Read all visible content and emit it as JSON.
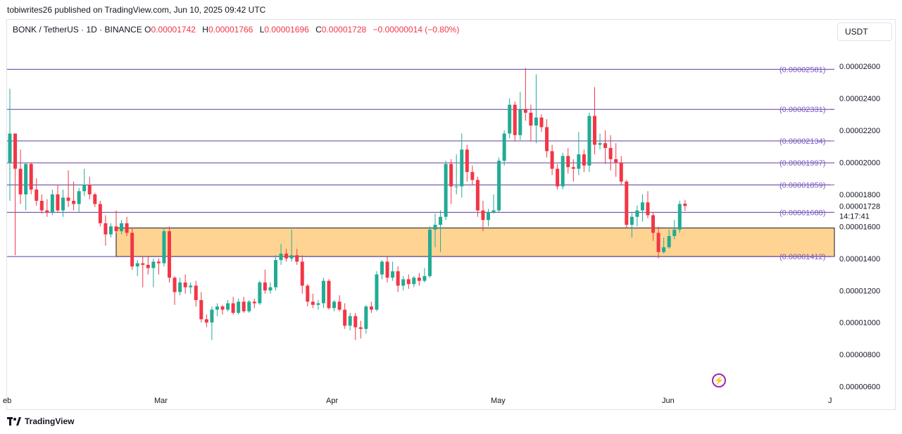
{
  "header": {
    "publish_text": "tobiwrites26 published on TradingView.com, Jun 10, 2025 09:42 UTC"
  },
  "legend": {
    "symbol": "BONK / TetherUS · 1D · BINANCE",
    "open_label": "O",
    "open": "0.00001742",
    "high_label": "H",
    "high": "0.00001766",
    "low_label": "L",
    "low": "0.00001696",
    "close_label": "C",
    "close": "0.00001728",
    "change": "−0.00000014 (−0.80%)"
  },
  "currency_selector": "USDT",
  "footer": {
    "brand": "TradingView"
  },
  "colors": {
    "up": "#22ab94",
    "down": "#f23645",
    "level_line": "#5b3fa0",
    "level_label": "#7e57c2",
    "zone_fill": "#ffcc80",
    "price_badge_text": "#131722"
  },
  "chart_data": {
    "type": "candlestick",
    "ylim": [
      5.5e-06,
      2.75e-05
    ],
    "y_ticks": [
      "0.00000600",
      "0.00000800",
      "0.00001000",
      "0.00001200",
      "0.00001400",
      "0.00001600",
      "0.00001800",
      "0.00002000",
      "0.00002200",
      "0.00002400",
      "0.00002600"
    ],
    "x_ticks": [
      "eb",
      "Mar",
      "Apr",
      "May",
      "Jun",
      "J"
    ],
    "current_price": "0.00001728",
    "countdown": "14:17:41",
    "horizontal_levels": [
      {
        "value": 2.581e-05,
        "label": "(0.00002581)"
      },
      {
        "value": 2.331e-05,
        "label": "(0.00002331)"
      },
      {
        "value": 2.134e-05,
        "label": "(0.00002134)"
      },
      {
        "value": 1.997e-05,
        "label": "(0.00001997)"
      },
      {
        "value": 1.859e-05,
        "label": "(0.00001859)"
      },
      {
        "value": 1.688e-05,
        "label": "(0.00001688)"
      },
      {
        "value": 1.412e-05,
        "label": "(0.00001412)"
      }
    ],
    "support_zone": {
      "top": 1.59e-05,
      "bottom": 1.412e-05,
      "start_date": "2025-03-01",
      "end": "right-edge"
    },
    "candles": [
      [
        "2025-02-09",
        2e-05,
        2.46e-05,
        1.76e-05,
        2.18e-05
      ],
      [
        "2025-02-10",
        2.18e-05,
        2.18e-05,
        1.42e-05,
        1.96e-05
      ],
      [
        "2025-02-11",
        1.96e-05,
        2.08e-05,
        1.74e-05,
        1.8e-05
      ],
      [
        "2025-02-12",
        1.8e-05,
        2e-05,
        1.7e-05,
        1.99e-05
      ],
      [
        "2025-02-13",
        1.99e-05,
        2e-05,
        1.8e-05,
        1.83e-05
      ],
      [
        "2025-02-14",
        1.83e-05,
        1.9e-05,
        1.73e-05,
        1.76e-05
      ],
      [
        "2025-02-15",
        1.76e-05,
        1.8e-05,
        1.68e-05,
        1.7e-05
      ],
      [
        "2025-02-16",
        1.7e-05,
        1.77e-05,
        1.66e-05,
        1.69e-05
      ],
      [
        "2025-02-17",
        1.69e-05,
        1.83e-05,
        1.67e-05,
        1.8e-05
      ],
      [
        "2025-02-18",
        1.8e-05,
        1.86e-05,
        1.69e-05,
        1.7e-05
      ],
      [
        "2025-02-19",
        1.7e-05,
        1.83e-05,
        1.66e-05,
        1.78e-05
      ],
      [
        "2025-02-20",
        1.78e-05,
        1.95e-05,
        1.72e-05,
        1.76e-05
      ],
      [
        "2025-02-21",
        1.76e-05,
        1.88e-05,
        1.7e-05,
        1.74e-05
      ],
      [
        "2025-02-22",
        1.74e-05,
        1.84e-05,
        1.69e-05,
        1.82e-05
      ],
      [
        "2025-02-23",
        1.82e-05,
        1.96e-05,
        1.79e-05,
        1.86e-05
      ],
      [
        "2025-02-24",
        1.86e-05,
        1.91e-05,
        1.77e-05,
        1.8e-05
      ],
      [
        "2025-02-25",
        1.8e-05,
        1.81e-05,
        1.72e-05,
        1.74e-05
      ],
      [
        "2025-02-26",
        1.74e-05,
        1.76e-05,
        1.6e-05,
        1.62e-05
      ],
      [
        "2025-02-27",
        1.62e-05,
        1.67e-05,
        1.48e-05,
        1.55e-05
      ],
      [
        "2025-02-28",
        1.55e-05,
        1.62e-05,
        1.53e-05,
        1.6e-05
      ],
      [
        "2025-03-01",
        1.6e-05,
        1.7e-05,
        1.56e-05,
        1.57e-05
      ],
      [
        "2025-03-02",
        1.57e-05,
        1.64e-05,
        1.55e-05,
        1.62e-05
      ],
      [
        "2025-03-03",
        1.62e-05,
        1.66e-05,
        1.54e-05,
        1.56e-05
      ],
      [
        "2025-03-04",
        1.56e-05,
        1.59e-05,
        1.33e-05,
        1.35e-05
      ],
      [
        "2025-03-05",
        1.35e-05,
        1.39e-05,
        1.29e-05,
        1.37e-05
      ],
      [
        "2025-03-06",
        1.37e-05,
        1.41e-05,
        1.22e-05,
        1.36e-05
      ],
      [
        "2025-03-07",
        1.36e-05,
        1.41e-05,
        1.3e-05,
        1.34e-05
      ],
      [
        "2025-03-08",
        1.34e-05,
        1.4e-05,
        1.22e-05,
        1.38e-05
      ],
      [
        "2025-03-09",
        1.38e-05,
        1.4e-05,
        1.3e-05,
        1.37e-05
      ],
      [
        "2025-03-10",
        1.37e-05,
        1.59e-05,
        1.35e-05,
        1.57e-05
      ],
      [
        "2025-03-11",
        1.57e-05,
        1.6e-05,
        1.25e-05,
        1.28e-05
      ],
      [
        "2025-03-12",
        1.28e-05,
        1.29e-05,
        1.11e-05,
        1.19e-05
      ],
      [
        "2025-03-13",
        1.19e-05,
        1.28e-05,
        1.17e-05,
        1.25e-05
      ],
      [
        "2025-03-14",
        1.25e-05,
        1.3e-05,
        1.18e-05,
        1.22e-05
      ],
      [
        "2025-03-15",
        1.22e-05,
        1.25e-05,
        1.18e-05,
        1.23e-05
      ],
      [
        "2025-03-16",
        1.23e-05,
        1.26e-05,
        1.1e-05,
        1.14e-05
      ],
      [
        "2025-03-17",
        1.14e-05,
        1.19e-05,
        1e-05,
        1.02e-05
      ],
      [
        "2025-03-18",
        1.02e-05,
        1.05e-05,
        9.7e-06,
        1e-05
      ],
      [
        "2025-03-19",
        1e-05,
        1.1e-05,
        8.9e-06,
        1.08e-05
      ],
      [
        "2025-03-20",
        1.08e-05,
        1.12e-05,
        1.04e-05,
        1.1e-05
      ],
      [
        "2025-03-21",
        1.1e-05,
        1.11e-05,
        1.05e-05,
        1.08e-05
      ],
      [
        "2025-03-22",
        1.08e-05,
        1.14e-05,
        1.07e-05,
        1.12e-05
      ],
      [
        "2025-03-23",
        1.12e-05,
        1.16e-05,
        1.05e-05,
        1.06e-05
      ],
      [
        "2025-03-24",
        1.06e-05,
        1.15e-05,
        1.05e-05,
        1.13e-05
      ],
      [
        "2025-03-25",
        1.13e-05,
        1.16e-05,
        1.06e-05,
        1.07e-05
      ],
      [
        "2025-03-26",
        1.07e-05,
        1.14e-05,
        1.06e-05,
        1.13e-05
      ],
      [
        "2025-03-27",
        1.13e-05,
        1.15e-05,
        1.09e-05,
        1.12e-05
      ],
      [
        "2025-03-28",
        1.12e-05,
        1.26e-05,
        1.11e-05,
        1.25e-05
      ],
      [
        "2025-03-29",
        1.25e-05,
        1.33e-05,
        1.18e-05,
        1.2e-05
      ],
      [
        "2025-03-30",
        1.2e-05,
        1.25e-05,
        1.18e-05,
        1.22e-05
      ],
      [
        "2025-03-31",
        1.22e-05,
        1.42e-05,
        1.2e-05,
        1.39e-05
      ],
      [
        "2025-04-01",
        1.39e-05,
        1.49e-05,
        1.36e-05,
        1.43e-05
      ],
      [
        "2025-04-02",
        1.43e-05,
        1.46e-05,
        1.38e-05,
        1.4e-05
      ],
      [
        "2025-04-03",
        1.4e-05,
        1.58e-05,
        1.38e-05,
        1.42e-05
      ],
      [
        "2025-04-04",
        1.42e-05,
        1.46e-05,
        1.36e-05,
        1.38e-05
      ],
      [
        "2025-04-05",
        1.38e-05,
        1.42e-05,
        1.18e-05,
        1.23e-05
      ],
      [
        "2025-04-06",
        1.23e-05,
        1.24e-05,
        1.1e-05,
        1.13e-05
      ],
      [
        "2025-04-07",
        1.13e-05,
        1.18e-05,
        1.09e-05,
        1.11e-05
      ],
      [
        "2025-04-08",
        1.11e-05,
        1.14e-05,
        1.08e-05,
        1.12e-05
      ],
      [
        "2025-04-09",
        1.12e-05,
        1.28e-05,
        1.09e-05,
        1.26e-05
      ],
      [
        "2025-04-10",
        1.26e-05,
        1.27e-05,
        1.08e-05,
        1.09e-05
      ],
      [
        "2025-04-11",
        1.09e-05,
        1.14e-05,
        1.07e-05,
        1.13e-05
      ],
      [
        "2025-04-12",
        1.13e-05,
        1.17e-05,
        1.07e-05,
        1.08e-05
      ],
      [
        "2025-04-13",
        1.08e-05,
        1.12e-05,
        9.6e-06,
        9.8e-06
      ],
      [
        "2025-04-14",
        9.8e-06,
        1.06e-05,
        9.5e-06,
        1.04e-05
      ],
      [
        "2025-04-15",
        1.04e-05,
        1.06e-05,
        8.9e-06,
        9.7e-06
      ],
      [
        "2025-04-16",
        9.7e-06,
        1.01e-05,
        9e-06,
        9.6e-06
      ],
      [
        "2025-04-17",
        9.6e-06,
        1.11e-05,
        9.3e-06,
        1.1e-05
      ],
      [
        "2025-04-18",
        1.1e-05,
        1.13e-05,
        1.06e-05,
        1.08e-05
      ],
      [
        "2025-04-19",
        1.08e-05,
        1.32e-05,
        1.07e-05,
        1.3e-05
      ],
      [
        "2025-04-20",
        1.3e-05,
        1.39e-05,
        1.27e-05,
        1.38e-05
      ],
      [
        "2025-04-21",
        1.38e-05,
        1.41e-05,
        1.25e-05,
        1.28e-05
      ],
      [
        "2025-04-22",
        1.28e-05,
        1.38e-05,
        1.26e-05,
        1.32e-05
      ],
      [
        "2025-04-23",
        1.32e-05,
        1.35e-05,
        1.19e-05,
        1.23e-05
      ],
      [
        "2025-04-24",
        1.23e-05,
        1.29e-05,
        1.2e-05,
        1.27e-05
      ],
      [
        "2025-04-25",
        1.27e-05,
        1.3e-05,
        1.21e-05,
        1.24e-05
      ],
      [
        "2025-04-26",
        1.24e-05,
        1.29e-05,
        1.22e-05,
        1.28e-05
      ],
      [
        "2025-04-27",
        1.28e-05,
        1.31e-05,
        1.23e-05,
        1.26e-05
      ],
      [
        "2025-04-28",
        1.26e-05,
        1.34e-05,
        1.25e-05,
        1.29e-05
      ],
      [
        "2025-04-29",
        1.29e-05,
        1.6e-05,
        1.28e-05,
        1.58e-05
      ],
      [
        "2025-04-30",
        1.58e-05,
        1.68e-05,
        1.47e-05,
        1.61e-05
      ],
      [
        "2025-05-01",
        1.61e-05,
        1.7e-05,
        1.44e-05,
        1.66e-05
      ],
      [
        "2025-05-02",
        1.66e-05,
        2.01e-05,
        1.64e-05,
        1.99e-05
      ],
      [
        "2025-05-03",
        1.99e-05,
        2.02e-05,
        1.74e-05,
        1.85e-05
      ],
      [
        "2025-05-04",
        1.85e-05,
        2.05e-05,
        1.8e-05,
        1.85e-05
      ],
      [
        "2025-05-05",
        1.85e-05,
        2.18e-05,
        1.78e-05,
        2.08e-05
      ],
      [
        "2025-05-06",
        2.08e-05,
        2.11e-05,
        1.88e-05,
        1.94e-05
      ],
      [
        "2025-05-07",
        1.94e-05,
        1.98e-05,
        1.86e-05,
        1.89e-05
      ],
      [
        "2025-05-08",
        1.89e-05,
        1.91e-05,
        1.66e-05,
        1.7e-05
      ],
      [
        "2025-05-09",
        1.7e-05,
        1.76e-05,
        1.57e-05,
        1.64e-05
      ],
      [
        "2025-05-10",
        1.64e-05,
        1.71e-05,
        1.6e-05,
        1.69e-05
      ],
      [
        "2025-05-11",
        1.69e-05,
        1.8e-05,
        1.68e-05,
        1.7e-05
      ],
      [
        "2025-05-12",
        1.7e-05,
        2.03e-05,
        1.69e-05,
        2.01e-05
      ],
      [
        "2025-05-13",
        2.01e-05,
        2.2e-05,
        1.98e-05,
        2.18e-05
      ],
      [
        "2025-05-14",
        2.18e-05,
        2.4e-05,
        2.15e-05,
        2.36e-05
      ],
      [
        "2025-05-15",
        2.36e-05,
        2.38e-05,
        2.13e-05,
        2.17e-05
      ],
      [
        "2025-05-16",
        2.17e-05,
        2.44e-05,
        2.14e-05,
        2.33e-05
      ],
      [
        "2025-05-17",
        2.33e-05,
        2.59e-05,
        2.26e-05,
        2.31e-05
      ],
      [
        "2025-05-18",
        2.31e-05,
        2.36e-05,
        2.13e-05,
        2.23e-05
      ],
      [
        "2025-05-19",
        2.23e-05,
        2.55e-05,
        2.12e-05,
        2.28e-05
      ],
      [
        "2025-05-20",
        2.28e-05,
        2.3e-05,
        2.19e-05,
        2.22e-05
      ],
      [
        "2025-05-21",
        2.22e-05,
        2.27e-05,
        2.03e-05,
        2.07e-05
      ],
      [
        "2025-05-22",
        2.07e-05,
        2.11e-05,
        1.92e-05,
        1.96e-05
      ],
      [
        "2025-05-23",
        1.96e-05,
        1.99e-05,
        1.83e-05,
        1.85e-05
      ],
      [
        "2025-05-24",
        1.85e-05,
        2.06e-05,
        1.83e-05,
        2.04e-05
      ],
      [
        "2025-05-25",
        2.04e-05,
        2.09e-05,
        1.93e-05,
        1.97e-05
      ],
      [
        "2025-05-26",
        1.97e-05,
        2.02e-05,
        1.88e-05,
        1.96e-05
      ],
      [
        "2025-05-27",
        1.96e-05,
        2.19e-05,
        1.92e-05,
        2.05e-05
      ],
      [
        "2025-05-28",
        2.05e-05,
        2.08e-05,
        1.94e-05,
        1.98e-05
      ],
      [
        "2025-05-29",
        1.98e-05,
        2.31e-05,
        1.94e-05,
        2.29e-05
      ],
      [
        "2025-05-30",
        2.29e-05,
        2.47e-05,
        2.05e-05,
        2.11e-05
      ],
      [
        "2025-05-31",
        2.11e-05,
        2.18e-05,
        2.08e-05,
        2.12e-05
      ],
      [
        "2025-06-01",
        2.12e-05,
        2.2e-05,
        1.99e-05,
        2.09e-05
      ],
      [
        "2025-06-02",
        2.09e-05,
        2.17e-05,
        1.95e-05,
        2.02e-05
      ],
      [
        "2025-06-03",
        2.02e-05,
        2.12e-05,
        1.91e-05,
        2e-05
      ],
      [
        "2025-06-04",
        2e-05,
        2.04e-05,
        1.86e-05,
        1.88e-05
      ],
      [
        "2025-06-05",
        1.88e-05,
        1.89e-05,
        1.59e-05,
        1.61e-05
      ],
      [
        "2025-06-06",
        1.61e-05,
        1.69e-05,
        1.53e-05,
        1.66e-05
      ],
      [
        "2025-06-07",
        1.66e-05,
        1.73e-05,
        1.6e-05,
        1.7e-05
      ],
      [
        "2025-06-08",
        1.7e-05,
        1.8e-05,
        1.63e-05,
        1.75e-05
      ],
      [
        "2025-06-09",
        1.75e-05,
        1.82e-05,
        1.65e-05,
        1.67e-05
      ],
      [
        "2025-06-10",
        1.67e-05,
        1.69e-05,
        1.51e-05,
        1.56e-05
      ],
      [
        "2025-06-11",
        1.56e-05,
        1.6e-05,
        1.4e-05,
        1.44e-05
      ],
      [
        "2025-06-12",
        1.44e-05,
        1.53e-05,
        1.43e-05,
        1.47e-05
      ],
      [
        "2025-06-13",
        1.47e-05,
        1.58e-05,
        1.46e-05,
        1.54e-05
      ],
      [
        "2025-06-14",
        1.54e-05,
        1.64e-05,
        1.52e-05,
        1.58e-05
      ],
      [
        "2025-06-15",
        1.58e-05,
        1.76e-05,
        1.56e-05,
        1.74e-05
      ],
      [
        "2025-06-16",
        1.742e-05,
        1.766e-05,
        1.696e-05,
        1.728e-05
      ]
    ]
  }
}
